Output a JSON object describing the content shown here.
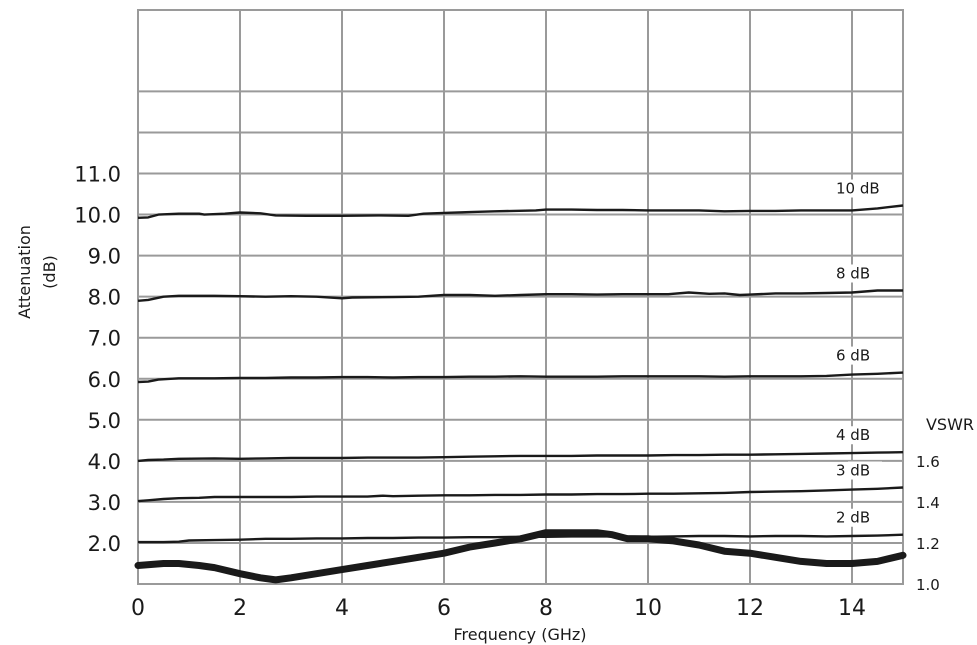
{
  "chart_data": {
    "type": "line",
    "xlabel": "Frequency (GHz)",
    "ylabel": [
      "Attenuation",
      "(dB)"
    ],
    "y2label": "VSWR",
    "xlim": [
      0,
      15
    ],
    "x_ticks": [
      0,
      2,
      4,
      6,
      8,
      10,
      12,
      14
    ],
    "ylim": [
      1.0,
      11.0
    ],
    "y_ticks": [
      "2.0",
      "3.0",
      "4.0",
      "5.0",
      "6.0",
      "7.0",
      "8.0",
      "9.0",
      "10.0",
      "11.0"
    ],
    "y2lim": [
      1.0,
      2.0
    ],
    "y2_ticks": [
      "1.0",
      "1.2",
      "1.4",
      "1.6"
    ],
    "grid": true,
    "series": [
      {
        "name": "10 dB",
        "axis": "left",
        "points": [
          [
            0,
            9.92
          ],
          [
            0.2,
            9.93
          ],
          [
            0.4,
            10.0
          ],
          [
            0.8,
            10.02
          ],
          [
            1.2,
            10.02
          ],
          [
            1.3,
            10.0
          ],
          [
            1.7,
            10.02
          ],
          [
            2.0,
            10.05
          ],
          [
            2.4,
            10.03
          ],
          [
            2.7,
            9.98
          ],
          [
            3.3,
            9.97
          ],
          [
            4.0,
            9.97
          ],
          [
            4.7,
            9.98
          ],
          [
            5.3,
            9.97
          ],
          [
            5.6,
            10.02
          ],
          [
            6.0,
            10.04
          ],
          [
            6.5,
            10.06
          ],
          [
            7.0,
            10.08
          ],
          [
            7.8,
            10.1
          ],
          [
            8.0,
            10.12
          ],
          [
            8.5,
            10.12
          ],
          [
            9.0,
            10.11
          ],
          [
            9.5,
            10.11
          ],
          [
            10.0,
            10.1
          ],
          [
            10.5,
            10.1
          ],
          [
            11.0,
            10.1
          ],
          [
            11.5,
            10.08
          ],
          [
            12.0,
            10.09
          ],
          [
            12.5,
            10.09
          ],
          [
            13.0,
            10.1
          ],
          [
            13.5,
            10.1
          ],
          [
            14.0,
            10.1
          ],
          [
            14.5,
            10.15
          ],
          [
            15.0,
            10.22
          ]
        ]
      },
      {
        "name": "8 dB",
        "axis": "left",
        "points": [
          [
            0,
            7.9
          ],
          [
            0.2,
            7.92
          ],
          [
            0.5,
            8.0
          ],
          [
            0.8,
            8.02
          ],
          [
            1.5,
            8.02
          ],
          [
            2.0,
            8.01
          ],
          [
            2.5,
            8.0
          ],
          [
            3.0,
            8.01
          ],
          [
            3.5,
            8.0
          ],
          [
            4.0,
            7.96
          ],
          [
            4.2,
            7.98
          ],
          [
            5.0,
            7.99
          ],
          [
            5.5,
            8.0
          ],
          [
            6.0,
            8.04
          ],
          [
            6.5,
            8.04
          ],
          [
            7.0,
            8.02
          ],
          [
            7.5,
            8.04
          ],
          [
            8.0,
            8.06
          ],
          [
            8.5,
            8.06
          ],
          [
            9.0,
            8.05
          ],
          [
            9.5,
            8.06
          ],
          [
            10.0,
            8.06
          ],
          [
            10.4,
            8.06
          ],
          [
            10.8,
            8.1
          ],
          [
            11.2,
            8.07
          ],
          [
            11.5,
            8.08
          ],
          [
            11.8,
            8.04
          ],
          [
            12.0,
            8.05
          ],
          [
            12.5,
            8.08
          ],
          [
            13.0,
            8.08
          ],
          [
            13.5,
            8.09
          ],
          [
            14.0,
            8.1
          ],
          [
            14.5,
            8.15
          ],
          [
            15.0,
            8.15
          ]
        ]
      },
      {
        "name": "6 dB",
        "axis": "left",
        "points": [
          [
            0,
            5.92
          ],
          [
            0.2,
            5.93
          ],
          [
            0.4,
            5.98
          ],
          [
            0.8,
            6.01
          ],
          [
            1.5,
            6.01
          ],
          [
            2.0,
            6.02
          ],
          [
            2.5,
            6.02
          ],
          [
            3.0,
            6.03
          ],
          [
            3.5,
            6.03
          ],
          [
            4.0,
            6.04
          ],
          [
            4.5,
            6.04
          ],
          [
            5.0,
            6.03
          ],
          [
            5.5,
            6.04
          ],
          [
            6.0,
            6.04
          ],
          [
            6.5,
            6.05
          ],
          [
            7.0,
            6.05
          ],
          [
            7.5,
            6.06
          ],
          [
            8.0,
            6.05
          ],
          [
            8.5,
            6.05
          ],
          [
            9.0,
            6.05
          ],
          [
            9.5,
            6.06
          ],
          [
            10.0,
            6.06
          ],
          [
            10.5,
            6.06
          ],
          [
            11.0,
            6.06
          ],
          [
            11.5,
            6.05
          ],
          [
            12.0,
            6.06
          ],
          [
            12.5,
            6.06
          ],
          [
            13.0,
            6.06
          ],
          [
            13.5,
            6.07
          ],
          [
            14.0,
            6.1
          ],
          [
            14.5,
            6.12
          ],
          [
            15.0,
            6.15
          ]
        ]
      },
      {
        "name": "4 dB",
        "axis": "left",
        "points": [
          [
            0,
            4.0
          ],
          [
            0.2,
            4.02
          ],
          [
            0.5,
            4.03
          ],
          [
            0.8,
            4.05
          ],
          [
            1.5,
            4.06
          ],
          [
            2.0,
            4.05
          ],
          [
            2.5,
            4.06
          ],
          [
            3.0,
            4.07
          ],
          [
            3.5,
            4.07
          ],
          [
            4.0,
            4.07
          ],
          [
            4.5,
            4.08
          ],
          [
            5.0,
            4.08
          ],
          [
            5.5,
            4.08
          ],
          [
            6.0,
            4.09
          ],
          [
            6.5,
            4.1
          ],
          [
            7.0,
            4.11
          ],
          [
            7.5,
            4.12
          ],
          [
            8.0,
            4.12
          ],
          [
            8.5,
            4.12
          ],
          [
            9.0,
            4.13
          ],
          [
            9.5,
            4.13
          ],
          [
            10.0,
            4.13
          ],
          [
            10.5,
            4.14
          ],
          [
            11.0,
            4.14
          ],
          [
            11.5,
            4.15
          ],
          [
            12.0,
            4.15
          ],
          [
            12.5,
            4.16
          ],
          [
            13.0,
            4.17
          ],
          [
            13.5,
            4.18
          ],
          [
            14.0,
            4.19
          ],
          [
            14.5,
            4.2
          ],
          [
            15.0,
            4.21
          ]
        ]
      },
      {
        "name": "3 dB",
        "axis": "left",
        "points": [
          [
            0,
            3.02
          ],
          [
            0.2,
            3.04
          ],
          [
            0.5,
            3.07
          ],
          [
            0.8,
            3.09
          ],
          [
            1.2,
            3.1
          ],
          [
            1.5,
            3.12
          ],
          [
            2.0,
            3.12
          ],
          [
            2.5,
            3.12
          ],
          [
            3.0,
            3.12
          ],
          [
            3.5,
            3.13
          ],
          [
            4.0,
            3.13
          ],
          [
            4.5,
            3.13
          ],
          [
            4.8,
            3.15
          ],
          [
            5.0,
            3.14
          ],
          [
            5.5,
            3.15
          ],
          [
            6.0,
            3.16
          ],
          [
            6.5,
            3.16
          ],
          [
            7.0,
            3.17
          ],
          [
            7.5,
            3.17
          ],
          [
            8.0,
            3.18
          ],
          [
            8.5,
            3.18
          ],
          [
            9.0,
            3.19
          ],
          [
            9.5,
            3.19
          ],
          [
            10.0,
            3.2
          ],
          [
            10.5,
            3.2
          ],
          [
            11.0,
            3.21
          ],
          [
            11.5,
            3.22
          ],
          [
            12.0,
            3.24
          ],
          [
            12.5,
            3.25
          ],
          [
            13.0,
            3.26
          ],
          [
            13.5,
            3.28
          ],
          [
            14.0,
            3.3
          ],
          [
            14.5,
            3.32
          ],
          [
            15.0,
            3.35
          ]
        ]
      },
      {
        "name": "2 dB",
        "axis": "left",
        "points": [
          [
            0,
            2.02
          ],
          [
            0.5,
            2.02
          ],
          [
            0.8,
            2.03
          ],
          [
            1.0,
            2.06
          ],
          [
            1.5,
            2.07
          ],
          [
            2.0,
            2.08
          ],
          [
            2.5,
            2.1
          ],
          [
            3.0,
            2.1
          ],
          [
            3.5,
            2.11
          ],
          [
            4.0,
            2.11
          ],
          [
            4.5,
            2.12
          ],
          [
            5.0,
            2.12
          ],
          [
            5.5,
            2.13
          ],
          [
            6.0,
            2.13
          ],
          [
            6.5,
            2.14
          ],
          [
            7.0,
            2.14
          ],
          [
            7.5,
            2.15
          ],
          [
            8.0,
            2.15
          ],
          [
            8.5,
            2.16
          ],
          [
            9.0,
            2.16
          ],
          [
            9.5,
            2.16
          ],
          [
            10.0,
            2.15
          ],
          [
            10.5,
            2.16
          ],
          [
            11.0,
            2.17
          ],
          [
            11.5,
            2.17
          ],
          [
            12.0,
            2.16
          ],
          [
            12.5,
            2.17
          ],
          [
            13.0,
            2.17
          ],
          [
            13.5,
            2.16
          ],
          [
            14.0,
            2.17
          ],
          [
            14.5,
            2.18
          ],
          [
            15.0,
            2.2
          ]
        ]
      },
      {
        "name": "VSWR",
        "axis": "right",
        "points": [
          [
            0,
            1.09
          ],
          [
            0.5,
            1.1
          ],
          [
            0.8,
            1.1
          ],
          [
            1.2,
            1.09
          ],
          [
            1.5,
            1.08
          ],
          [
            2.0,
            1.05
          ],
          [
            2.4,
            1.03
          ],
          [
            2.7,
            1.02
          ],
          [
            3.0,
            1.03
          ],
          [
            3.5,
            1.05
          ],
          [
            4.0,
            1.07
          ],
          [
            4.5,
            1.09
          ],
          [
            5.0,
            1.11
          ],
          [
            5.5,
            1.13
          ],
          [
            6.0,
            1.15
          ],
          [
            6.5,
            1.18
          ],
          [
            7.0,
            1.2
          ],
          [
            7.5,
            1.22
          ],
          [
            8.0,
            1.25
          ],
          [
            8.5,
            1.25
          ],
          [
            9.0,
            1.25
          ],
          [
            9.3,
            1.24
          ],
          [
            9.6,
            1.22
          ],
          [
            10.0,
            1.22
          ],
          [
            10.5,
            1.21
          ],
          [
            11.0,
            1.19
          ],
          [
            11.5,
            1.16
          ],
          [
            12.0,
            1.15
          ],
          [
            12.5,
            1.13
          ],
          [
            13.0,
            1.11
          ],
          [
            13.5,
            1.1
          ],
          [
            14.0,
            1.1
          ],
          [
            14.5,
            1.11
          ],
          [
            15.0,
            1.14
          ]
        ]
      }
    ]
  }
}
